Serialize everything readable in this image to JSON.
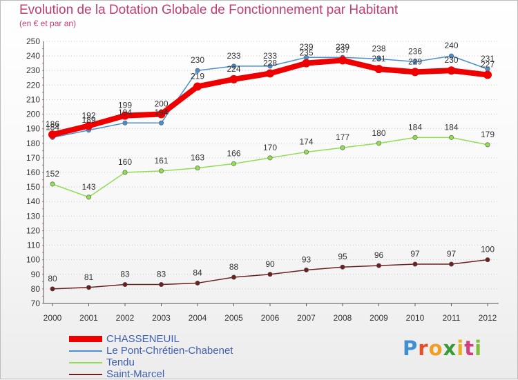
{
  "header": {
    "title": "Evolution de la Dotation Globale de Fonctionnement par Habitant",
    "subtitle": "(en € et par an)"
  },
  "logo": {
    "text": "Proxiti"
  },
  "chart_data": {
    "type": "line",
    "title": "Evolution de la Dotation Globale de Fonctionnement par Habitant",
    "subtitle": "(en € et par an)",
    "xlabel": "",
    "ylabel": "",
    "categories": [
      "2000",
      "2001",
      "2002",
      "2003",
      "2004",
      "2005",
      "2006",
      "2007",
      "2008",
      "2009",
      "2010",
      "2011",
      "2012"
    ],
    "ylim": [
      70,
      250
    ],
    "ytick_step": 10,
    "grid": "horizontal dotted",
    "legend_position": "bottom-left",
    "series": [
      {
        "name": "CHASSENEUIL",
        "color": "#ee0000",
        "values": [
          186,
          192,
          199,
          200,
          219,
          224,
          228,
          235,
          237,
          231,
          229,
          230,
          227
        ]
      },
      {
        "name": "Le Pont-Chrétien-Chabenet",
        "color": "#4a90d0",
        "values": [
          184,
          189,
          194,
          194,
          230,
          233,
          233,
          239,
          239,
          238,
          236,
          240,
          231
        ]
      },
      {
        "name": "Tendu",
        "color": "#90dd50",
        "values": [
          152,
          143,
          160,
          161,
          163,
          166,
          170,
          174,
          177,
          180,
          184,
          184,
          179
        ]
      },
      {
        "name": "Saint-Marcel",
        "color": "#6b1f1f",
        "values": [
          80,
          81,
          83,
          83,
          84,
          88,
          90,
          93,
          95,
          96,
          97,
          97,
          100
        ]
      }
    ]
  }
}
